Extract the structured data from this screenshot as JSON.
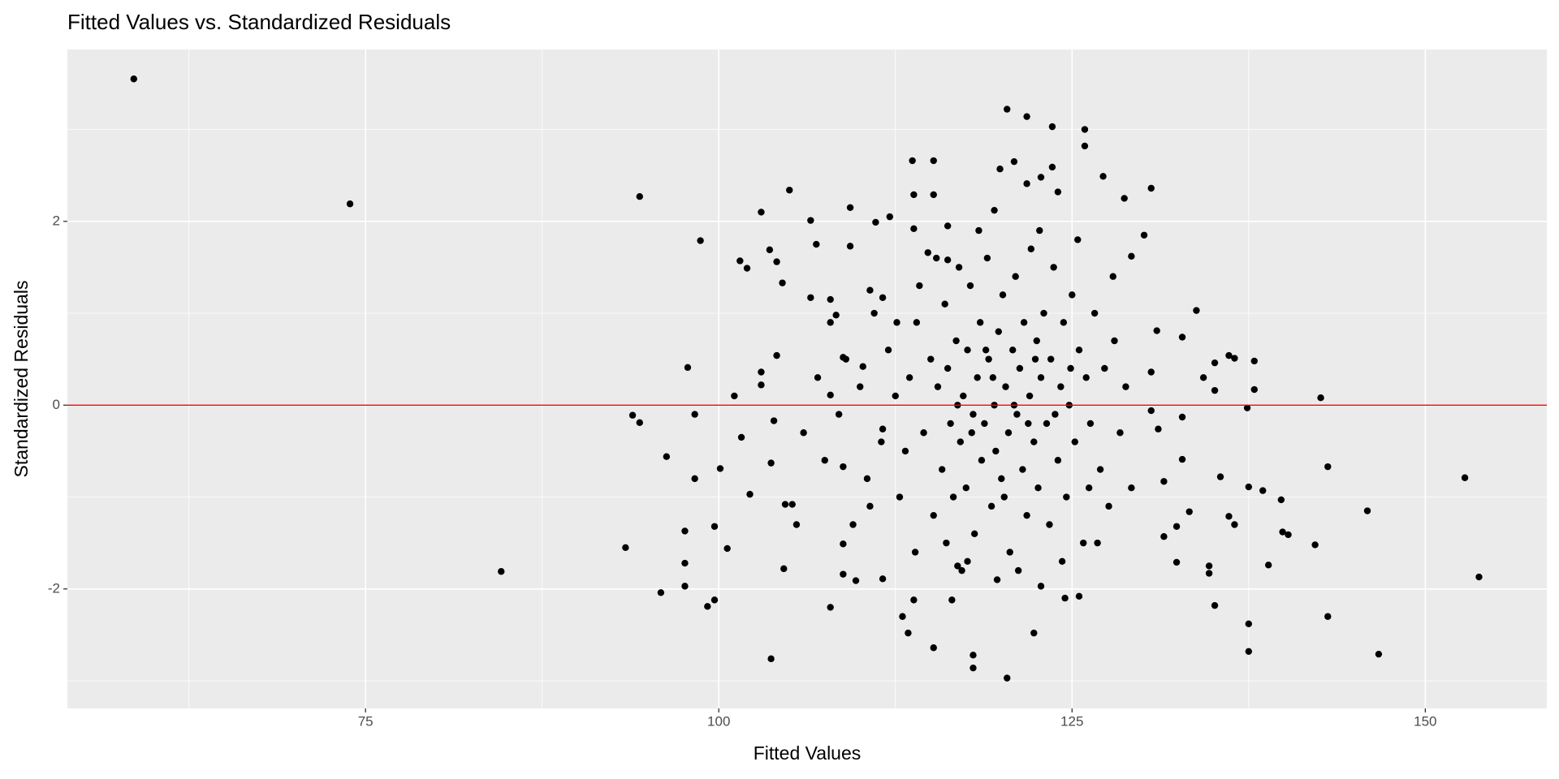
{
  "chart_data": {
    "type": "scatter",
    "title": "Fitted Values vs. Standardized Residuals",
    "x_label": "Fitted Values",
    "y_label": "Standardized Residuals",
    "xlim": [
      53.9,
      158.6
    ],
    "ylim": [
      -3.3,
      3.87
    ],
    "xticks": [
      75,
      100,
      125,
      150
    ],
    "yticks": [
      -2,
      0,
      2
    ],
    "grid": true,
    "minor_grid": true,
    "color": "#000000",
    "hline": {
      "value": 0,
      "color": "#ff0000"
    },
    "x": [
      58.6,
      73.9,
      84.6,
      94.4,
      93.9,
      94.4,
      93.4,
      98.7,
      97.8,
      98.3,
      96.3,
      95.9,
      97.6,
      97.6,
      97.6,
      98.3,
      99.2,
      99.7,
      99.7,
      100.1,
      100.6,
      101.1,
      101.5,
      101.6,
      102.0,
      102.2,
      103.0,
      103.0,
      103.0,
      103.6,
      103.7,
      103.7,
      103.9,
      104.1,
      104.1,
      104.5,
      104.6,
      105.0,
      104.7,
      105.2,
      106.5,
      106.5,
      106.9,
      107.9,
      107.9,
      107.9,
      107.9,
      109.3,
      109.3,
      108.3,
      108.8,
      108.8,
      108.8,
      108.8,
      109.7,
      110.7,
      110.7,
      111.1,
      110.2,
      111.6,
      111.6,
      111.6,
      112.1,
      112.6,
      113.0,
      113.4,
      113.7,
      113.8,
      113.8,
      113.8,
      115.2,
      115.2,
      115.2,
      114.8,
      116.2,
      116.2,
      116.9,
      117.6,
      116.5,
      118.0,
      118.0,
      120.4,
      119.5,
      119.9,
      120.4,
      120.9,
      121.8,
      121.8,
      122.3,
      122.8,
      122.8,
      123.6,
      123.6,
      124.0,
      124.5,
      125.5,
      125.9,
      125.9,
      127.2,
      128.7,
      129.2,
      130.1,
      130.6,
      131.0,
      130.6,
      130.6,
      131.1,
      131.5,
      131.5,
      132.4,
      132.4,
      132.8,
      132.8,
      132.8,
      133.3,
      133.8,
      134.3,
      134.7,
      134.7,
      135.1,
      135.1,
      135.5,
      136.1,
      136.5,
      136.1,
      136.5,
      135.1,
      137.4,
      137.5,
      137.5,
      137.5,
      137.9,
      137.9,
      138.5,
      138.9,
      139.8,
      139.9,
      140.3,
      142.2,
      142.6,
      143.1,
      143.1,
      145.9,
      146.7,
      152.8,
      153.8,
      114,
      114.5,
      115,
      115.2,
      115.5,
      115.8,
      116,
      116.2,
      116.4,
      116.6,
      116.8,
      117,
      117.1,
      117.3,
      117.5,
      117.6,
      117.8,
      118,
      118.1,
      118.3,
      118.5,
      118.6,
      118.8,
      119,
      119.1,
      119.3,
      119.5,
      119.6,
      119.8,
      120,
      120.1,
      120.3,
      120.5,
      120.6,
      120.8,
      121,
      121.1,
      121.3,
      121.5,
      121.6,
      121.8,
      122,
      122.1,
      122.3,
      122.5,
      122.6,
      122.8,
      123,
      123.2,
      123.4,
      123.5,
      123.7,
      124,
      124.2,
      124.4,
      124.6,
      124.8,
      125,
      125.2,
      125.5,
      125.8,
      126,
      126.3,
      126.6,
      127,
      127.3,
      127.6,
      128,
      128.4,
      128.8,
      129.2,
      113.2,
      113.5,
      112.8,
      112.5,
      112,
      111.5,
      111,
      110.5,
      110,
      109.5,
      109,
      108.5,
      107.5,
      107,
      106,
      105.5,
      117.2,
      118.4,
      119.7,
      121.2,
      122.7,
      124.3,
      125.4,
      126.8,
      127.9,
      116.1,
      115.4,
      114.2,
      113.9,
      120.9,
      119.4,
      121.9,
      118.9,
      122.4,
      120.2,
      123.8,
      117.9,
      116.9,
      124.9,
      126.2
    ],
    "values": [
      3.55,
      2.19,
      -1.81,
      2.27,
      -0.11,
      -0.19,
      -1.55,
      1.79,
      0.41,
      -0.1,
      -0.56,
      -2.04,
      -1.37,
      -1.72,
      -1.97,
      -0.8,
      -2.19,
      -2.12,
      -1.32,
      -0.69,
      -1.56,
      0.1,
      1.57,
      -0.35,
      1.49,
      -0.97,
      2.1,
      0.36,
      0.22,
      1.69,
      -2.76,
      -0.63,
      -0.17,
      1.56,
      0.54,
      1.33,
      -1.78,
      2.34,
      -1.08,
      -1.08,
      2.01,
      1.17,
      1.75,
      1.15,
      0.9,
      0.11,
      -2.2,
      2.15,
      1.73,
      0.98,
      0.52,
      -0.67,
      -1.51,
      -1.84,
      -1.91,
      -1.1,
      1.25,
      1.99,
      0.42,
      1.17,
      -0.26,
      -1.89,
      2.05,
      0.9,
      -2.3,
      -2.48,
      2.66,
      1.92,
      2.29,
      -2.12,
      2.66,
      2.29,
      -2.64,
      1.66,
      1.95,
      1.58,
      -1.75,
      -1.7,
      -2.12,
      -2.72,
      -2.86,
      -2.97,
      2.12,
      2.57,
      3.22,
      2.65,
      3.14,
      2.41,
      -2.48,
      2.48,
      -1.97,
      3.03,
      2.59,
      2.32,
      -2.1,
      -2.08,
      3.0,
      2.82,
      2.49,
      2.25,
      1.62,
      1.85,
      2.36,
      0.81,
      0.36,
      -0.06,
      -0.26,
      -0.83,
      -1.43,
      -1.71,
      -1.32,
      0.74,
      -0.13,
      -0.59,
      -1.16,
      1.03,
      0.3,
      -1.75,
      -1.83,
      0.16,
      -2.18,
      -0.78,
      -1.21,
      -1.3,
      0.54,
      0.51,
      0.46,
      -0.03,
      -0.89,
      -2.38,
      -2.68,
      0.48,
      0.17,
      -0.93,
      -1.74,
      -1.03,
      -1.38,
      -1.41,
      -1.52,
      0.08,
      -0.67,
      -2.3,
      -1.15,
      -2.71,
      -0.79,
      -1.87,
      0.9,
      -0.3,
      0.5,
      -1.2,
      0.2,
      -0.7,
      1.1,
      0.4,
      -0.2,
      -1.0,
      0.7,
      1.5,
      -0.4,
      0.1,
      -0.9,
      0.6,
      1.3,
      -0.1,
      -1.4,
      0.3,
      0.9,
      -0.6,
      -0.2,
      1.6,
      0.5,
      -1.1,
      0.0,
      -0.5,
      0.8,
      -0.8,
      1.2,
      0.2,
      -0.3,
      -1.6,
      0.6,
      1.4,
      -0.1,
      0.4,
      -0.7,
      0.9,
      -1.2,
      0.1,
      1.7,
      -0.4,
      0.7,
      -0.9,
      0.3,
      1.0,
      -0.2,
      -1.3,
      0.5,
      1.5,
      -0.6,
      0.2,
      0.9,
      -1.0,
      0.0,
      1.2,
      -0.4,
      0.6,
      -1.5,
      0.3,
      -0.2,
      1.0,
      -0.7,
      0.4,
      -1.1,
      0.7,
      -0.3,
      0.2,
      -0.9,
      -0.5,
      0.3,
      -1.0,
      0.1,
      0.6,
      -0.4,
      1.0,
      -0.8,
      0.2,
      -1.3,
      0.5,
      -0.1,
      -0.6,
      0.3,
      -0.3,
      -1.3,
      -1.8,
      1.9,
      -1.9,
      -1.8,
      1.9,
      -1.7,
      1.8,
      -1.5,
      1.4,
      -1.5,
      1.6,
      1.3,
      -1.6,
      0.0,
      0.3,
      -0.2,
      0.6,
      0.5,
      -1.0,
      -0.1,
      -0.3,
      0.0,
      0.4,
      -0.9
    ]
  }
}
